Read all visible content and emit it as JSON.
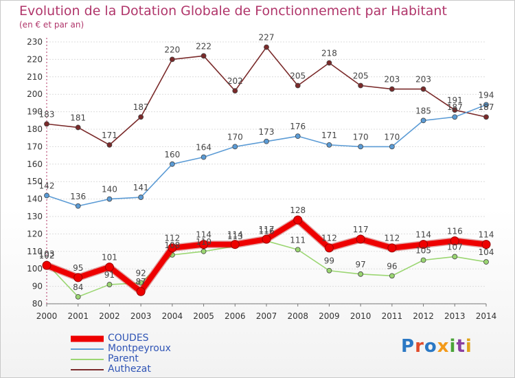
{
  "title": "Evolution de la Dotation Globale de Fonctionnement par Habitant",
  "subtitle": "(en € et par an)",
  "logo_text": "Proxiti",
  "chart_data": {
    "type": "line",
    "x": [
      "2000",
      "2001",
      "2002",
      "2003",
      "2004",
      "2005",
      "2006",
      "2007",
      "2008",
      "2009",
      "2010",
      "2011",
      "2012",
      "2013",
      "2014"
    ],
    "ylim": [
      80,
      230
    ],
    "yticks": [
      80,
      90,
      100,
      110,
      120,
      130,
      140,
      150,
      160,
      170,
      180,
      190,
      200,
      210,
      220,
      230
    ],
    "grid": true,
    "legend_position": "bottom-left",
    "series": [
      {
        "name": "COUDES",
        "color": "#ee0000",
        "values": [
          102,
          95,
          101,
          87,
          112,
          114,
          114,
          117,
          128,
          112,
          117,
          112,
          114,
          116,
          114
        ]
      },
      {
        "name": "Montpeyroux",
        "color": "#5b9bd5",
        "values": [
          142,
          136,
          140,
          141,
          160,
          164,
          170,
          173,
          176,
          171,
          170,
          170,
          185,
          187,
          194
        ]
      },
      {
        "name": "Parent",
        "color": "#9bd672",
        "values": [
          103,
          84,
          91,
          92,
          108,
          110,
          113,
          116,
          111,
          99,
          97,
          96,
          105,
          107,
          104
        ]
      },
      {
        "name": "Authezat",
        "color": "#7a2a2a",
        "values": [
          183,
          181,
          171,
          187,
          220,
          222,
          202,
          227,
          205,
          218,
          205,
          203,
          203,
          191,
          187
        ]
      }
    ]
  }
}
